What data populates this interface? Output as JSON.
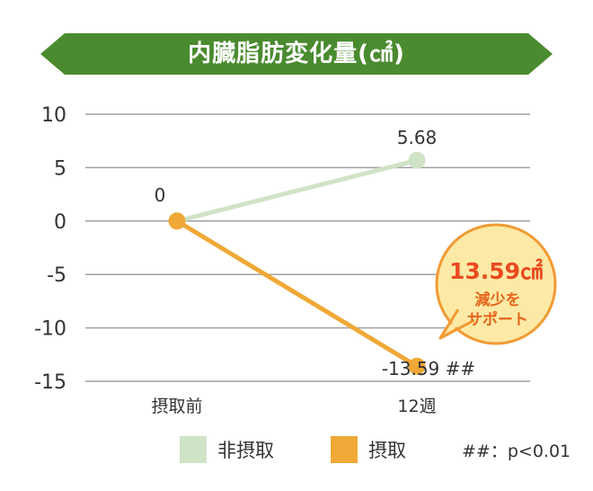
{
  "title": "内臓脂肪変化量(㎠)",
  "colors": {
    "banner": "#4a8b2f",
    "non_intake": "#cfe3c6",
    "intake": "#f0a836",
    "grid": "#a0a0a0",
    "callout_fill": "#fde9a6",
    "callout_stroke": "#f19a34",
    "callout_value": "#ea4a1f",
    "callout_text": "#e4661c"
  },
  "chart_data": {
    "type": "line",
    "title": "内臓脂肪変化量(㎠)",
    "categories": [
      "摂取前",
      "12週"
    ],
    "yticks": [
      "10",
      "5",
      "0",
      "-5",
      "-10",
      "-15"
    ],
    "ylim": [
      -15,
      10
    ],
    "grid": true,
    "series": [
      {
        "name": "非摂取",
        "values": [
          0,
          5.68
        ],
        "color": "#cfe3c6",
        "labels": [
          "",
          "5.68"
        ]
      },
      {
        "name": "摂取",
        "values": [
          0,
          -13.59
        ],
        "color": "#f0a836",
        "labels": [
          "0",
          "-13.59 ##"
        ]
      }
    ],
    "legend_position": "bottom",
    "annotations": {
      "callout_value": "13.59㎠",
      "callout_line1": "減少を",
      "callout_line2": "サポート",
      "footnote": "##：p<0.01"
    }
  }
}
